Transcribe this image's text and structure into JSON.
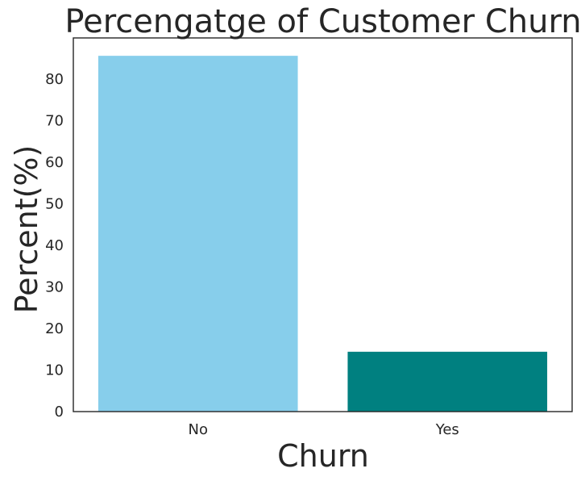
{
  "chart_data": {
    "type": "bar",
    "title": "Percengatge of Customer Churn",
    "xlabel": "Churn",
    "ylabel": "Percent(%)",
    "categories": [
      "No",
      "Yes"
    ],
    "values": [
      85.6,
      14.4
    ],
    "colors": [
      "#87ceeb",
      "#008080"
    ],
    "ylim": [
      0,
      89.9
    ],
    "yticks": [
      0,
      10,
      20,
      30,
      40,
      50,
      60,
      70,
      80
    ],
    "grid": false
  }
}
